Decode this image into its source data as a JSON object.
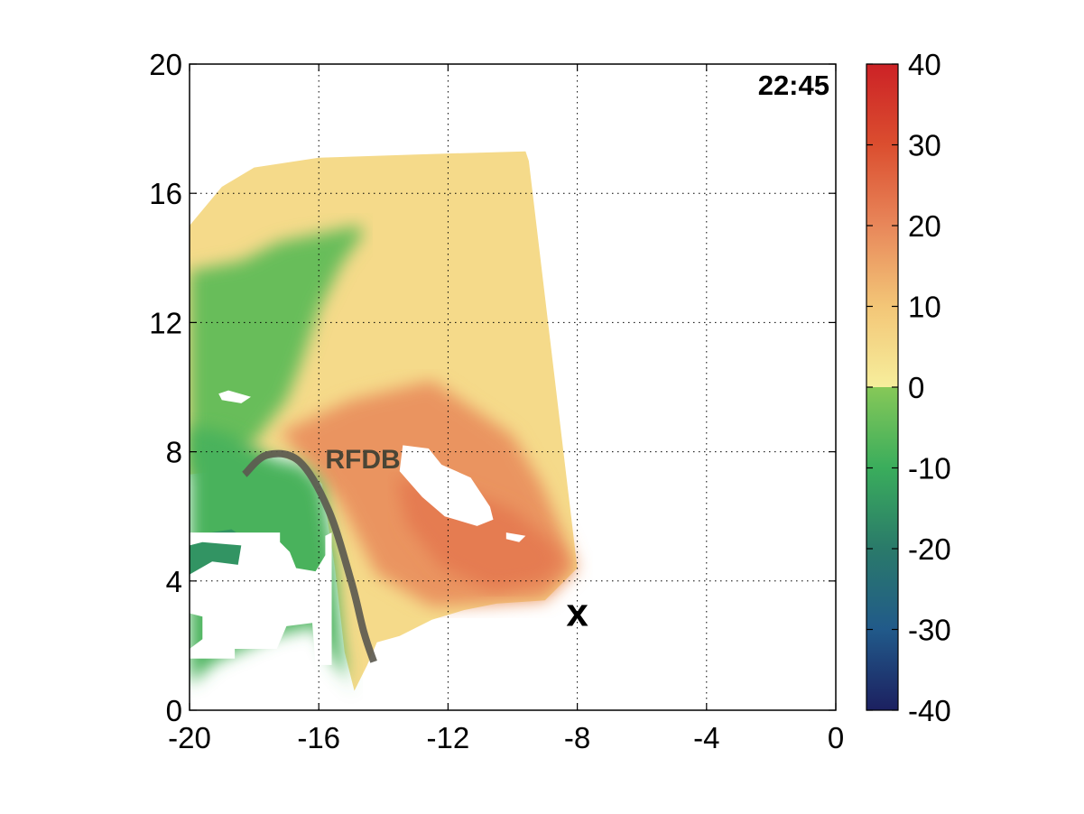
{
  "chart_data": {
    "type": "heatmap",
    "title": "",
    "xlabel": "",
    "ylabel": "",
    "xlim": [
      -20,
      0
    ],
    "ylim": [
      0,
      20
    ],
    "x_ticks": [
      "-20",
      "-16",
      "-12",
      "-8",
      "-4",
      "0"
    ],
    "y_ticks": [
      "0",
      "4",
      "8",
      "12",
      "16",
      "20"
    ],
    "grid": true,
    "timestamp": "22:45",
    "annotation": {
      "text": "RFDB",
      "x": -15.8,
      "y": 7.8
    },
    "marker": {
      "text": "x",
      "x": -8.0,
      "y": 3.0
    },
    "boundary_curve": [
      [
        -18.3,
        7.3
      ],
      [
        -17.6,
        7.9
      ],
      [
        -16.6,
        7.7
      ],
      [
        -15.7,
        6.2
      ],
      [
        -15.0,
        4.0
      ],
      [
        -14.6,
        2.4
      ],
      [
        -14.3,
        1.5
      ]
    ],
    "colorbar": {
      "min": -40,
      "max": 40,
      "ticks": [
        "-40",
        "-30",
        "-20",
        "-10",
        "0",
        "10",
        "20",
        "30",
        "40"
      ],
      "colors": [
        {
          "value": -40,
          "color": "#1c2060"
        },
        {
          "value": -30,
          "color": "#215a8a"
        },
        {
          "value": -20,
          "color": "#2a7a6a"
        },
        {
          "value": -10,
          "color": "#3aad5c"
        },
        {
          "value": 0,
          "color": "#86c858"
        },
        {
          "value": 0.01,
          "color": "#f6ee9c"
        },
        {
          "value": 10,
          "color": "#f3c677"
        },
        {
          "value": 20,
          "color": "#e8875a"
        },
        {
          "value": 30,
          "color": "#db4e2f"
        },
        {
          "value": 40,
          "color": "#cc2226"
        }
      ]
    },
    "regions": [
      {
        "name": "outbound-yellow",
        "value": 5,
        "polygon": [
          [
            -20,
            15
          ],
          [
            -19,
            16.2
          ],
          [
            -18,
            16.8
          ],
          [
            -16,
            17.1
          ],
          [
            -13,
            17.2
          ],
          [
            -9.6,
            17.3
          ],
          [
            -9.5,
            17.0
          ],
          [
            -8,
            4.4
          ],
          [
            -9,
            3.4
          ],
          [
            -10.5,
            3.3
          ],
          [
            -11.5,
            3.1
          ],
          [
            -12.5,
            2.8
          ],
          [
            -13.5,
            2.3
          ],
          [
            -14.2,
            2.1
          ],
          [
            -14.5,
            1.4
          ],
          [
            -14.9,
            0.6
          ],
          [
            -15.2,
            1.8
          ],
          [
            -15.5,
            4.4
          ],
          [
            -15.9,
            7.0
          ],
          [
            -16.5,
            7.6
          ],
          [
            -17.3,
            7.9
          ],
          [
            -18.3,
            7.5
          ],
          [
            -20,
            7.3
          ]
        ]
      },
      {
        "name": "outbound-orange",
        "value": 18,
        "polygon": [
          [
            -17.2,
            8.6
          ],
          [
            -15,
            9.6
          ],
          [
            -12.5,
            10.2
          ],
          [
            -10,
            8.5
          ],
          [
            -9.1,
            7.0
          ],
          [
            -8,
            4.4
          ],
          [
            -9,
            3.4
          ],
          [
            -10.5,
            3.3
          ],
          [
            -12.5,
            3.2
          ],
          [
            -14.2,
            4.2
          ],
          [
            -15.4,
            6.5
          ],
          [
            -16.5,
            7.8
          ]
        ]
      },
      {
        "name": "outbound-core",
        "value": 22,
        "polygon": [
          [
            -13.6,
            7.2
          ],
          [
            -12,
            7.0
          ],
          [
            -10,
            6.2
          ],
          [
            -8.8,
            5.2
          ],
          [
            -8.4,
            4.6
          ],
          [
            -9,
            4.0
          ],
          [
            -10.6,
            3.7
          ],
          [
            -12.2,
            4.4
          ],
          [
            -13.3,
            5.8
          ]
        ]
      },
      {
        "name": "inbound-green-upper",
        "value": -4,
        "polygon": [
          [
            -20,
            13.6
          ],
          [
            -18.4,
            13.9
          ],
          [
            -17.2,
            14.5
          ],
          [
            -16.2,
            14.7
          ],
          [
            -14.8,
            15.0
          ],
          [
            -14.6,
            14.8
          ],
          [
            -15.3,
            13.8
          ],
          [
            -16,
            12.4
          ],
          [
            -16.6,
            10.6
          ],
          [
            -17.0,
            9.6
          ],
          [
            -18.0,
            8.3
          ],
          [
            -19,
            7.6
          ],
          [
            -20,
            7.3
          ]
        ]
      },
      {
        "name": "inbound-green-lower",
        "value": -8,
        "polygon": [
          [
            -20,
            8.8
          ],
          [
            -18.9,
            8.6
          ],
          [
            -18.1,
            8.2
          ],
          [
            -17.4,
            7.8
          ],
          [
            -16.5,
            7.6
          ],
          [
            -15.9,
            7.0
          ],
          [
            -15.5,
            4.6
          ],
          [
            -15.3,
            2.2
          ],
          [
            -15.1,
            0.8
          ],
          [
            -14.9,
            0.6
          ],
          [
            -15.6,
            1.6
          ],
          [
            -16.1,
            2.6
          ],
          [
            -17.4,
            2.3
          ],
          [
            -18.3,
            1.9
          ],
          [
            -19.2,
            1.5
          ],
          [
            -20,
            0.8
          ]
        ]
      },
      {
        "name": "inbound-green-dark",
        "value": -15,
        "polygon": [
          [
            -20,
            5.4
          ],
          [
            -18.7,
            5.6
          ],
          [
            -17.8,
            5.0
          ],
          [
            -17.6,
            3.6
          ],
          [
            -18.2,
            3.0
          ],
          [
            -19.1,
            3.0
          ],
          [
            -20,
            3.6
          ]
        ]
      }
    ],
    "gaps": [
      {
        "polygon": [
          [
            -13.4,
            8.2
          ],
          [
            -12.6,
            8.1
          ],
          [
            -12.2,
            7.6
          ],
          [
            -11.3,
            7.2
          ],
          [
            -10.7,
            6.3
          ],
          [
            -10.6,
            5.9
          ],
          [
            -11.1,
            5.7
          ],
          [
            -12.1,
            6.0
          ],
          [
            -12.8,
            6.6
          ],
          [
            -13.5,
            7.4
          ]
        ]
      },
      {
        "polygon": [
          [
            -20,
            5.5
          ],
          [
            -17.2,
            5.5
          ],
          [
            -17.2,
            5.2
          ],
          [
            -16.9,
            4.9
          ],
          [
            -16.7,
            4.4
          ],
          [
            -16.1,
            4.3
          ],
          [
            -15.8,
            4.8
          ],
          [
            -15.8,
            5.4
          ],
          [
            -15.6,
            5.5
          ],
          [
            -15.6,
            1.4
          ],
          [
            -16.1,
            1.4
          ],
          [
            -16.2,
            2.7
          ],
          [
            -17,
            2.6
          ],
          [
            -17.3,
            1.9
          ],
          [
            -18.6,
            1.9
          ],
          [
            -18.6,
            1.6
          ],
          [
            -20,
            1.6
          ],
          [
            -20,
            1.9
          ],
          [
            -19.6,
            2.2
          ],
          [
            -19.6,
            2.9
          ],
          [
            -20,
            3.0
          ],
          [
            -20,
            4.2
          ],
          [
            -19.3,
            4.6
          ],
          [
            -18.5,
            4.5
          ],
          [
            -18.4,
            5.1
          ],
          [
            -19.6,
            5.2
          ],
          [
            -20,
            5.1
          ]
        ]
      },
      {
        "polygon": [
          [
            -19.1,
            9.8
          ],
          [
            -18.8,
            9.9
          ],
          [
            -18.1,
            9.7
          ],
          [
            -18.4,
            9.5
          ],
          [
            -19.0,
            9.6
          ]
        ]
      },
      {
        "polygon": [
          [
            -10.2,
            5.5
          ],
          [
            -9.6,
            5.4
          ],
          [
            -9.8,
            5.2
          ],
          [
            -10.2,
            5.3
          ]
        ]
      }
    ]
  }
}
